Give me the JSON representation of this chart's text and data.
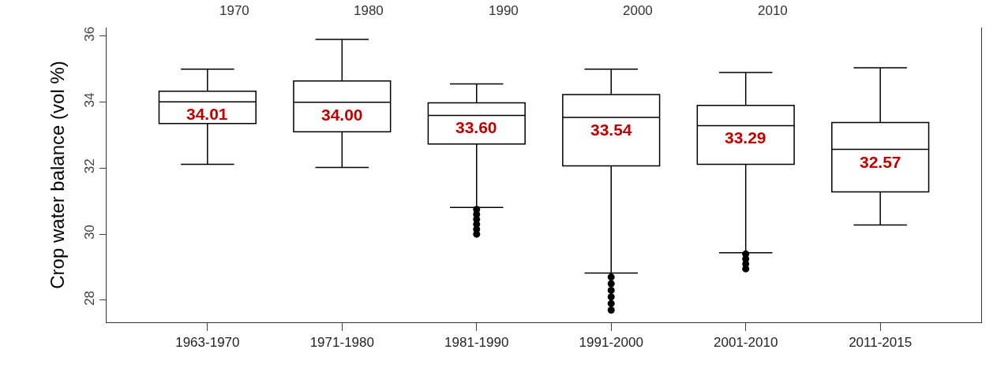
{
  "chart_data": {
    "type": "box",
    "ylabel": "Crop water balance (vol %)",
    "categories": [
      "1963-1970",
      "1971-1980",
      "1981-1990",
      "1991-2000",
      "2001-2010",
      "2011-2015"
    ],
    "boxes": [
      {
        "low": 32.12,
        "q1": 33.35,
        "median": 34.01,
        "q3": 34.33,
        "high": 35.0
      },
      {
        "low": 32.02,
        "q1": 33.1,
        "median": 34.0,
        "q3": 34.64,
        "high": 35.9
      },
      {
        "low": 30.81,
        "q1": 32.73,
        "median": 33.6,
        "q3": 33.98,
        "high": 34.55,
        "outliers": [
          30.0,
          30.15,
          30.3,
          30.45,
          30.6,
          30.75
        ]
      },
      {
        "low": 28.82,
        "q1": 32.07,
        "median": 33.54,
        "q3": 34.23,
        "high": 35.0,
        "outliers": [
          27.7,
          27.9,
          28.1,
          28.3,
          28.5,
          28.7
        ]
      },
      {
        "low": 29.44,
        "q1": 32.12,
        "median": 33.29,
        "q3": 33.9,
        "high": 34.9,
        "outliers": [
          28.95,
          29.1,
          29.25,
          29.4
        ]
      },
      {
        "low": 30.28,
        "q1": 31.28,
        "median": 32.57,
        "q3": 33.38,
        "high": 35.04
      }
    ],
    "value_labels": [
      "34.01",
      "34.00",
      "33.60",
      "33.54",
      "33.29",
      "32.57"
    ],
    "annotations": [
      "1970",
      "1980",
      "1990",
      "2000",
      "2010"
    ],
    "color": "#000000",
    "marker": "circle",
    "ylim": [
      27.33,
      36.26
    ],
    "yticks": [
      28,
      30,
      32,
      34,
      36
    ]
  }
}
